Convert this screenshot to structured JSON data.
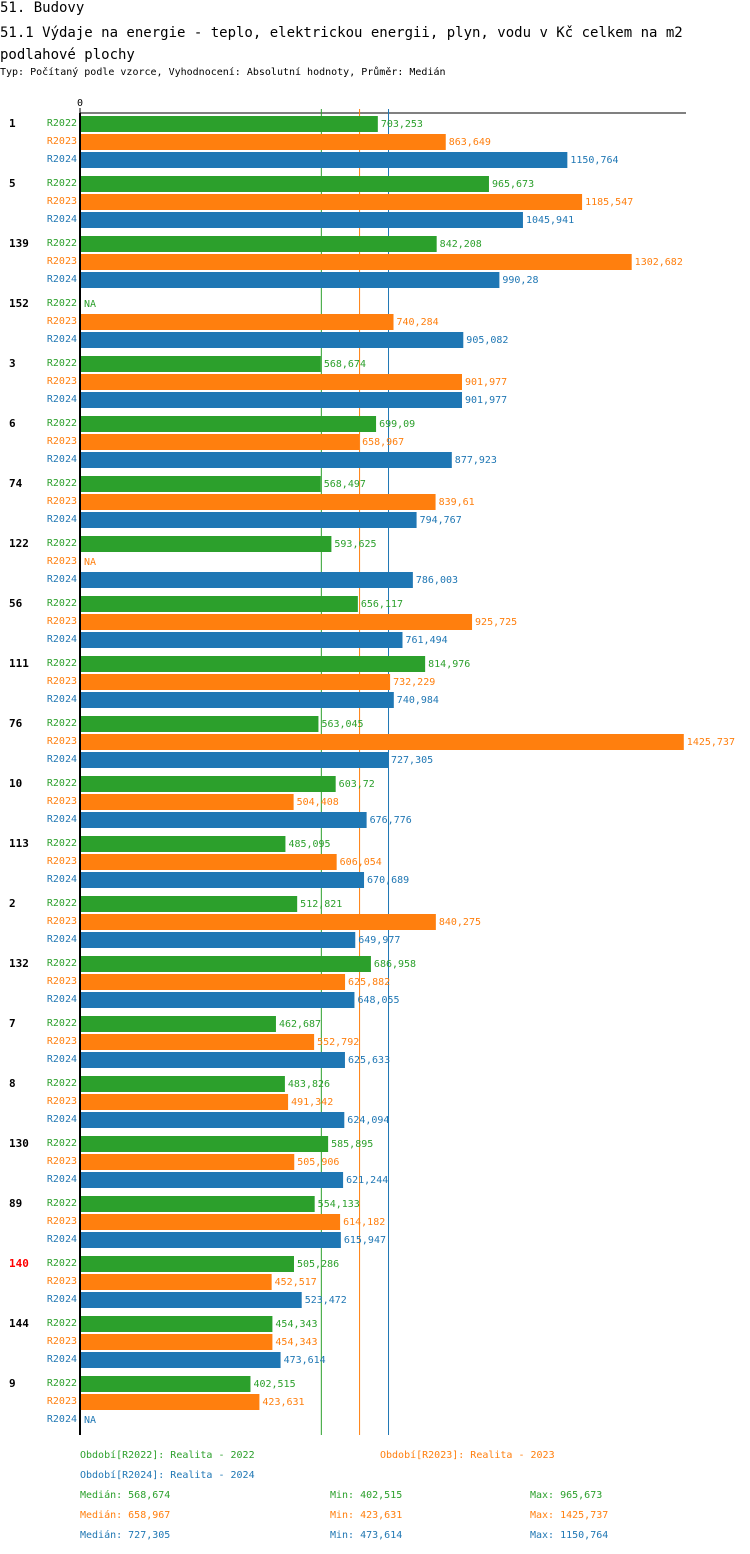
{
  "header": {
    "section": "51. Budovy",
    "title": "51.1 Výdaje na energie - teplo, elektrickou energii, plyn, vodu v Kč celkem na m2 podlahové plochy",
    "subtitle": "Typ: Počítaný podle vzorce, Vyhodnocení: Absolutní hodnoty, Průměr: Medián"
  },
  "colors": {
    "R2022": "#2ca02c",
    "R2023": "#ff7f0e",
    "R2024": "#1f77b4",
    "highlight": "#ff0000",
    "axis": "#000000"
  },
  "chart_data": {
    "type": "bar",
    "orientation": "horizontal",
    "title": "51.1 Výdaje na energie - teplo, elektrickou energii, plyn, vodu v Kč celkem na m2 podlahové plochy",
    "xlabel": "",
    "ylabel": "",
    "x_tick_labels": [
      "0"
    ],
    "xlim": [
      0,
      1425.737
    ],
    "grid": false,
    "legend_position": "bottom",
    "highlighted_category": "140",
    "categories": [
      "1",
      "5",
      "139",
      "152",
      "3",
      "6",
      "74",
      "122",
      "56",
      "111",
      "76",
      "10",
      "113",
      "2",
      "132",
      "7",
      "8",
      "130",
      "89",
      "140",
      "144",
      "9"
    ],
    "series": [
      {
        "name": "R2022",
        "values": [
          703.253,
          965.673,
          842.208,
          null,
          568.674,
          699.09,
          568.497,
          593.625,
          656.117,
          814.976,
          563.045,
          603.72,
          485.095,
          512.821,
          686.958,
          462.687,
          483.826,
          585.895,
          554.133,
          505.286,
          454.343,
          402.515
        ],
        "labels": [
          "703,253",
          "965,673",
          "842,208",
          "NA",
          "568,674",
          "699,09",
          "568,497",
          "593,625",
          "656,117",
          "814,976",
          "563,045",
          "603,72",
          "485,095",
          "512,821",
          "686,958",
          "462,687",
          "483,826",
          "585,895",
          "554,133",
          "505,286",
          "454,343",
          "402,515"
        ]
      },
      {
        "name": "R2023",
        "values": [
          863.649,
          1185.547,
          1302.682,
          740.284,
          901.977,
          658.967,
          839.61,
          null,
          925.725,
          732.229,
          1425.737,
          504.408,
          606.054,
          840.275,
          625.882,
          552.792,
          491.342,
          505.906,
          614.182,
          452.517,
          454.343,
          423.631
        ],
        "labels": [
          "863,649",
          "1185,547",
          "1302,682",
          "740,284",
          "901,977",
          "658,967",
          "839,61",
          "NA",
          "925,725",
          "732,229",
          "1425,737",
          "504,408",
          "606,054",
          "840,275",
          "625,882",
          "552,792",
          "491,342",
          "505,906",
          "614,182",
          "452,517",
          "454,343",
          "423,631"
        ]
      },
      {
        "name": "R2024",
        "values": [
          1150.764,
          1045.941,
          990.28,
          905.082,
          901.977,
          877.923,
          794.767,
          786.003,
          761.494,
          740.984,
          727.305,
          676.776,
          670.689,
          649.977,
          648.055,
          625.633,
          624.094,
          621.244,
          615.947,
          523.472,
          473.614,
          null
        ],
        "labels": [
          "1150,764",
          "1045,941",
          "990,28",
          "905,082",
          "901,977",
          "877,923",
          "794,767",
          "786,003",
          "761,494",
          "740,984",
          "727,305",
          "676,776",
          "670,689",
          "649,977",
          "648,055",
          "625,633",
          "624,094",
          "621,244",
          "615,947",
          "523,472",
          "473,614",
          "NA"
        ]
      }
    ],
    "median_lines": {
      "R2022": 568.674,
      "R2023": 658.967,
      "R2024": 727.305
    }
  },
  "legend": {
    "periods": [
      {
        "key": "R2022",
        "text": "Období[R2022]: Realita - 2022"
      },
      {
        "key": "R2023",
        "text": "Období[R2023]: Realita - 2023"
      },
      {
        "key": "R2024",
        "text": "Období[R2024]: Realita - 2024"
      }
    ],
    "stats": [
      {
        "key": "R2022",
        "median": "Medián: 568,674",
        "min": "Min: 402,515",
        "max": "Max: 965,673"
      },
      {
        "key": "R2023",
        "median": "Medián: 658,967",
        "min": "Min: 423,631",
        "max": "Max: 1425,737"
      },
      {
        "key": "R2024",
        "median": "Medián: 727,305",
        "min": "Min: 473,614",
        "max": "Max: 1150,764"
      }
    ]
  }
}
